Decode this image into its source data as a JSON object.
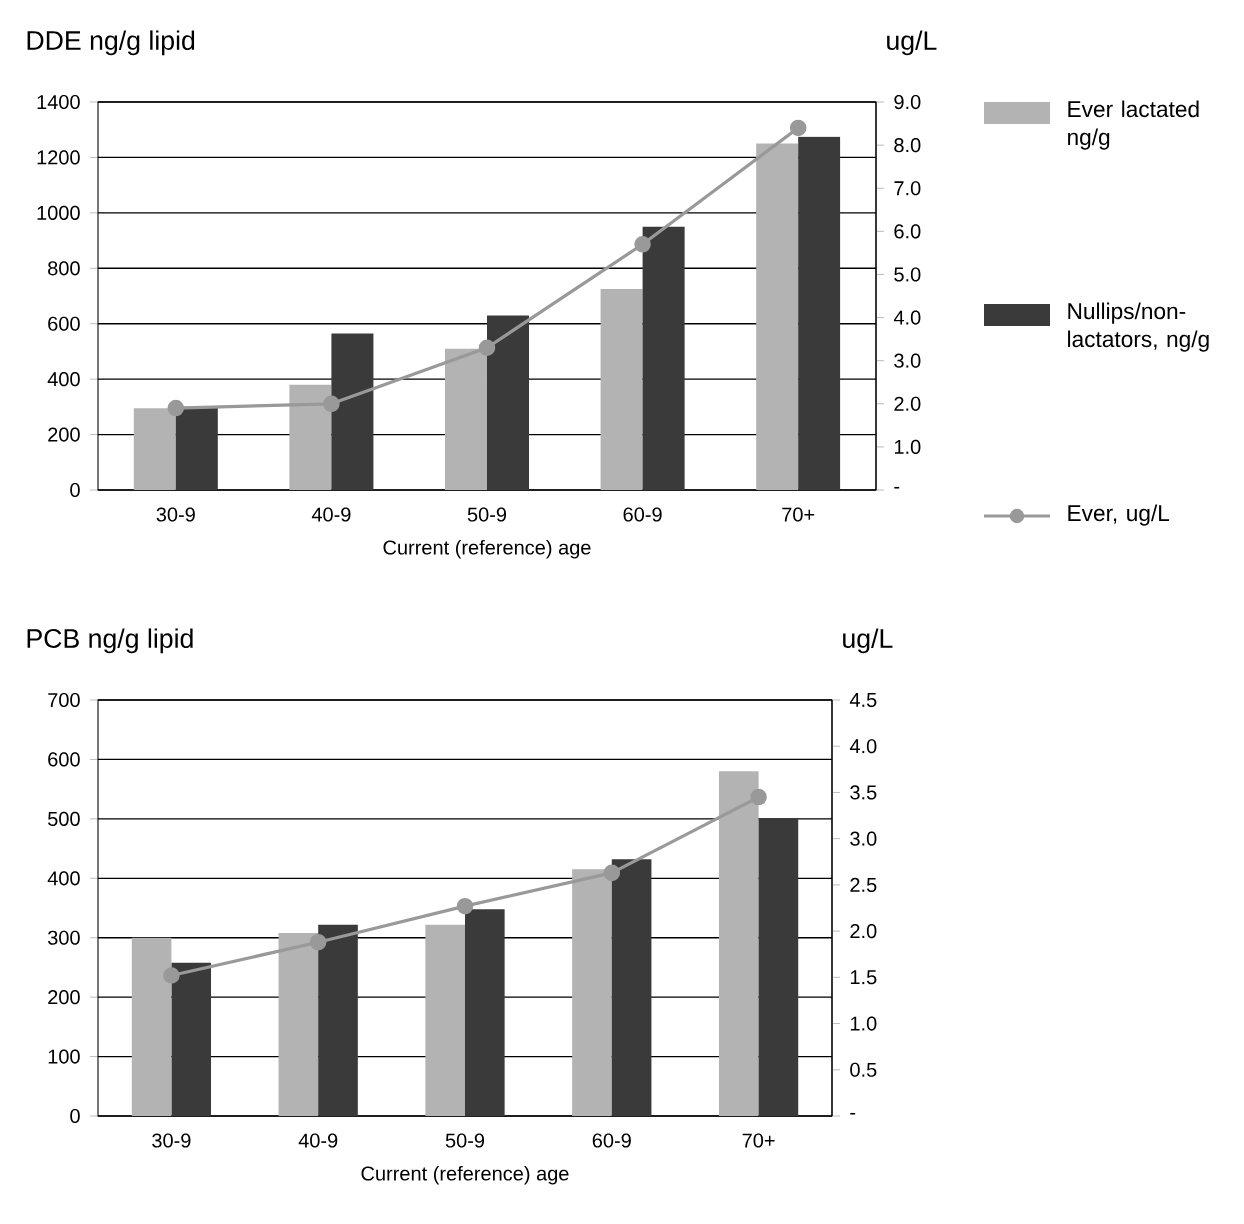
{
  "chart_data": [
    {
      "type": "bar",
      "xlabel": "Current (reference) age",
      "ylabel": "DDE ng/g lipid",
      "y2label": "ug/L",
      "categories": [
        "30-9",
        "40-9",
        "50-9",
        "60-9",
        "70+"
      ],
      "series": [
        {
          "name": "Ever lactated ng/g",
          "color": "#b3b3b3",
          "values": [
            295,
            380,
            510,
            725,
            1250
          ]
        },
        {
          "name": "Nullips/non-lactators, ng/g",
          "color": "#3a3a3a",
          "values": [
            300,
            565,
            630,
            950,
            1275
          ]
        },
        {
          "name": "Ever, ug/L",
          "type": "line",
          "axis": "y2",
          "color": "#999999",
          "values": [
            1.9,
            2.0,
            3.3,
            5.7,
            8.4
          ]
        }
      ],
      "ylim": [
        0,
        1400
      ],
      "yticks": [
        0,
        200,
        400,
        600,
        800,
        1000,
        1200,
        1400
      ],
      "y2lim": [
        0,
        9
      ],
      "y2ticks": [
        {
          "value": 0,
          "label": "-"
        },
        {
          "value": 1,
          "label": "1.0"
        },
        {
          "value": 2,
          "label": "2.0"
        },
        {
          "value": 3,
          "label": "3.0"
        },
        {
          "value": 4,
          "label": "4.0"
        },
        {
          "value": 5,
          "label": "5.0"
        },
        {
          "value": 6,
          "label": "6.0"
        },
        {
          "value": 7,
          "label": "7.0"
        },
        {
          "value": 8,
          "label": "8.0"
        },
        {
          "value": 9,
          "label": "9.0"
        }
      ],
      "grid": "y",
      "legend": "right",
      "marker": "circle"
    },
    {
      "type": "bar",
      "xlabel": "Current (reference) age",
      "ylabel": "PCB ng/g lipid",
      "y2label": "ug/L",
      "categories": [
        "30-9",
        "40-9",
        "50-9",
        "60-9",
        "70+"
      ],
      "series": [
        {
          "color": "#b3b3b3",
          "values": [
            300,
            308,
            322,
            415,
            580
          ]
        },
        {
          "color": "#3a3a3a",
          "values": [
            258,
            322,
            348,
            432,
            500
          ]
        },
        {
          "type": "line",
          "axis": "y2",
          "color": "#999999",
          "values": [
            1.52,
            1.88,
            2.27,
            2.63,
            3.45
          ]
        }
      ],
      "ylim": [
        0,
        700
      ],
      "yticks": [
        0,
        100,
        200,
        300,
        400,
        500,
        600,
        700
      ],
      "y2lim": [
        0,
        4.5
      ],
      "y2ticks": [
        {
          "value": 0,
          "label": "-"
        },
        {
          "value": 0.5,
          "label": "0.5"
        },
        {
          "value": 1,
          "label": "1.0"
        },
        {
          "value": 1.5,
          "label": "1.5"
        },
        {
          "value": 2,
          "label": "2.0"
        },
        {
          "value": 2.5,
          "label": "2.5"
        },
        {
          "value": 3,
          "label": "3.0"
        },
        {
          "value": 3.5,
          "label": "3.5"
        },
        {
          "value": 4,
          "label": "4.0"
        },
        {
          "value": 4.5,
          "label": "4.5"
        }
      ],
      "grid": "y",
      "marker": "circle"
    }
  ]
}
